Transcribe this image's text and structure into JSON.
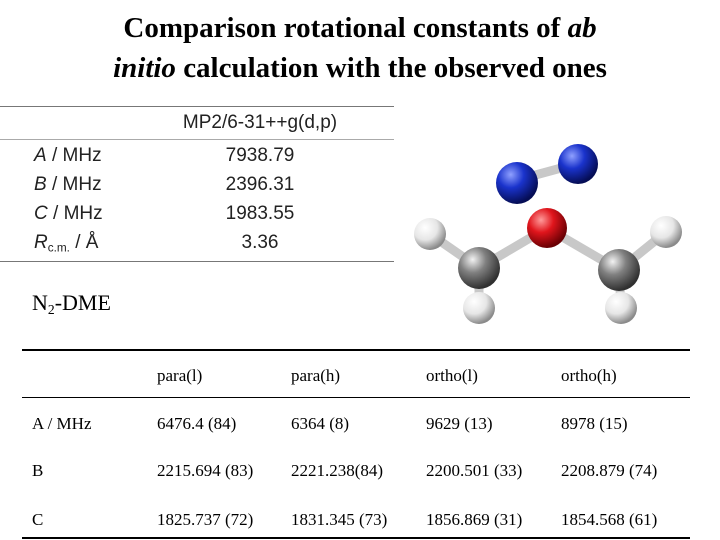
{
  "title": {
    "line1_plain": "Comparison rotational constants of ",
    "line1_italic": "ab",
    "line2_italic": "initio",
    "line2_plain": " calculation with the observed ones"
  },
  "calc_table": {
    "method": "MP2/6-31++g(d,p)",
    "rows": [
      {
        "symbol": "A",
        "unit": " / MHz",
        "value": "7938.79"
      },
      {
        "symbol": "B",
        "unit": " / MHz",
        "value": "2396.31"
      },
      {
        "symbol": "C",
        "unit": " / MHz",
        "value": "1983.55"
      },
      {
        "symbol": "R",
        "subscript": "c.m.",
        "unit": " / Å",
        "value": "3.36"
      }
    ]
  },
  "species": {
    "base": "N",
    "subscript": "2",
    "rest": "-DME"
  },
  "molecule": {
    "atoms": [
      {
        "element": "N",
        "color": "#1a33cc"
      },
      {
        "element": "N",
        "color": "#1a33cc"
      },
      {
        "element": "O",
        "color": "#e0151c"
      },
      {
        "element": "C",
        "color": "#808080"
      },
      {
        "element": "C",
        "color": "#808080"
      },
      {
        "element": "H",
        "color": "#e6e6e6"
      }
    ]
  },
  "obs_table": {
    "headers": [
      "",
      "para(l)",
      "para(h)",
      "ortho(l)",
      "ortho(h)"
    ],
    "rows": [
      {
        "label": "A / MHz",
        "values": [
          "6476.4 (84)",
          "6364 (8)",
          "9629 (13)",
          "8978 (15)"
        ]
      },
      {
        "label": "B",
        "values": [
          "2215.694 (83)",
          "2221.238(84)",
          "2200.501 (33)",
          "2208.879 (74)"
        ]
      },
      {
        "label": "C",
        "values": [
          "1825.737 (72)",
          "1831.345 (73)",
          "1856.869 (31)",
          "1854.568 (61)"
        ]
      }
    ]
  }
}
